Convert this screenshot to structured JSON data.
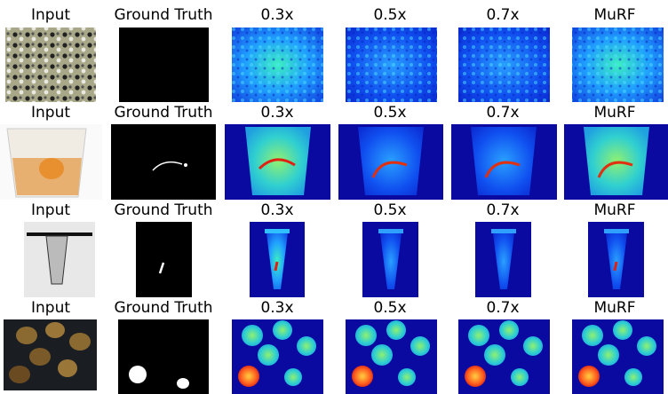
{
  "rows": [
    {
      "labels": [
        "Input",
        "Ground Truth",
        "0.3x",
        "0.5x",
        "0.7x",
        "MuRF"
      ]
    },
    {
      "labels": [
        "Input",
        "Ground Truth",
        "0.3x",
        "0.5x",
        "0.7x",
        "MuRF"
      ]
    },
    {
      "labels": [
        "Input",
        "Ground Truth",
        "0.3x",
        "0.5x",
        "0.7x",
        "MuRF"
      ]
    },
    {
      "labels": [
        "Input",
        "Ground Truth",
        "0.3x",
        "0.5x",
        "0.7x",
        "MuRF"
      ]
    }
  ]
}
